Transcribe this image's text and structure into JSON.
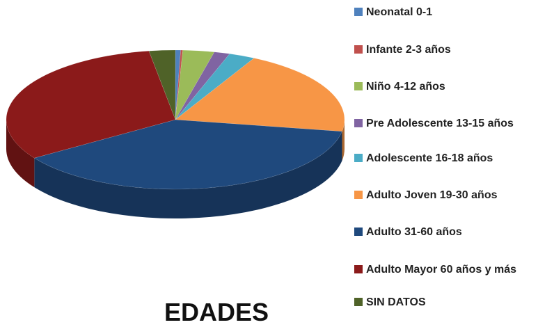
{
  "chart_data": {
    "type": "pie",
    "title": "EDADES",
    "categories": [
      "Neonatal 0-1",
      "Infante 2-3 años",
      "Niño 4-12 años",
      "Pre Adolescente 13-15 años",
      "Adolescente 16-18 años",
      "Adulto Joven 19-30 años",
      "Adulto  31-60 años",
      "Adulto Mayor 60 años y más",
      "SIN DATOS"
    ],
    "values": [
      0.5,
      0.2,
      3,
      1.5,
      2.5,
      20,
      38,
      31.8,
      2.5
    ],
    "colors": [
      "#4f81bd",
      "#c0504d",
      "#9bbb59",
      "#8064a2",
      "#4bacc6",
      "#f79646",
      "#1f497d",
      "#8b1a1a",
      "#4f6228"
    ],
    "legend": "right"
  }
}
